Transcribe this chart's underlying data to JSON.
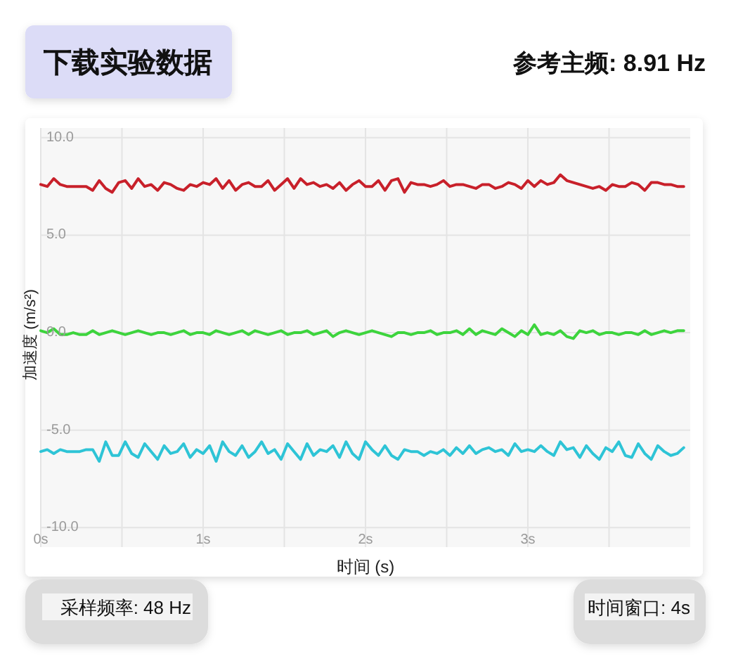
{
  "chart_data": {
    "type": "line",
    "xlabel": "时间 (s)",
    "ylabel": "加速度 (m/s²)",
    "annotations": [
      "下载实验数据",
      "参考主频: 8.91 Hz",
      "采样频率: 48 Hz",
      "时间窗口: 4s"
    ],
    "xlim": [
      0,
      4
    ],
    "ylim": [
      -11,
      10.5
    ],
    "xticks": [
      {
        "value": 0,
        "label": "0s"
      },
      {
        "value": 0.5,
        "label": null
      },
      {
        "value": 1,
        "label": "1s"
      },
      {
        "value": 1.5,
        "label": null
      },
      {
        "value": 2,
        "label": "2s"
      },
      {
        "value": 2.5,
        "label": null
      },
      {
        "value": 3,
        "label": "3s"
      },
      {
        "value": 3.5,
        "label": null
      }
    ],
    "yticks": [
      {
        "value": -10,
        "label": "-10.0"
      },
      {
        "value": -5,
        "label": "-5.0"
      },
      {
        "value": 0,
        "label": "0.0"
      },
      {
        "value": 5,
        "label": "5.0"
      },
      {
        "value": 10,
        "label": "10.0"
      }
    ],
    "grid": true,
    "x": [
      0,
      0.04,
      0.08,
      0.12,
      0.16,
      0.2,
      0.24,
      0.28,
      0.32,
      0.36,
      0.4,
      0.44,
      0.48,
      0.52,
      0.56,
      0.6,
      0.64,
      0.68,
      0.72,
      0.76,
      0.8,
      0.84,
      0.88,
      0.92,
      0.96,
      1,
      1.04,
      1.08,
      1.12,
      1.16,
      1.2,
      1.24,
      1.28,
      1.32,
      1.36,
      1.4,
      1.44,
      1.48,
      1.52,
      1.56,
      1.6,
      1.64,
      1.68,
      1.72,
      1.76,
      1.8,
      1.84,
      1.88,
      1.92,
      1.96,
      2,
      2.04,
      2.08,
      2.12,
      2.16,
      2.2,
      2.24,
      2.28,
      2.32,
      2.36,
      2.4,
      2.44,
      2.48,
      2.52,
      2.56,
      2.6,
      2.64,
      2.68,
      2.72,
      2.76,
      2.8,
      2.84,
      2.88,
      2.92,
      2.96,
      3,
      3.04,
      3.08,
      3.12,
      3.16,
      3.2,
      3.24,
      3.28,
      3.32,
      3.36,
      3.4,
      3.44,
      3.48,
      3.52,
      3.56,
      3.6,
      3.64,
      3.68,
      3.72,
      3.76,
      3.8,
      3.84,
      3.88,
      3.92,
      3.96
    ],
    "series": [
      {
        "color": "#c8202a",
        "values": [
          7.6,
          7.5,
          7.9,
          7.6,
          7.5,
          7.5,
          7.5,
          7.5,
          7.3,
          7.8,
          7.4,
          7.2,
          7.7,
          7.8,
          7.4,
          7.9,
          7.5,
          7.6,
          7.3,
          7.7,
          7.6,
          7.4,
          7.3,
          7.6,
          7.5,
          7.7,
          7.6,
          7.9,
          7.4,
          7.8,
          7.3,
          7.6,
          7.7,
          7.5,
          7.5,
          7.8,
          7.3,
          7.6,
          7.9,
          7.4,
          7.9,
          7.6,
          7.7,
          7.5,
          7.6,
          7.4,
          7.7,
          7.3,
          7.6,
          7.8,
          7.5,
          7.5,
          7.8,
          7.3,
          7.8,
          7.9,
          7.2,
          7.7,
          7.6,
          7.6,
          7.5,
          7.6,
          7.8,
          7.5,
          7.6,
          7.6,
          7.5,
          7.4,
          7.6,
          7.6,
          7.4,
          7.5,
          7.7,
          7.6,
          7.4,
          7.8,
          7.5,
          7.8,
          7.6,
          7.7,
          8.1,
          7.8,
          7.7,
          7.6,
          7.5,
          7.4,
          7.5,
          7.3,
          7.6,
          7.5,
          7.5,
          7.7,
          7.6,
          7.3,
          7.7,
          7.7,
          7.6,
          7.6,
          7.5,
          7.5
        ]
      },
      {
        "color": "#3dd43d",
        "values": [
          0.1,
          0.0,
          0.2,
          -0.1,
          -0.1,
          0.0,
          -0.1,
          -0.1,
          0.1,
          -0.1,
          0.0,
          0.1,
          0.0,
          -0.1,
          0.0,
          0.1,
          0.0,
          -0.1,
          0.0,
          0.0,
          -0.1,
          0.0,
          0.1,
          -0.1,
          0.0,
          0.0,
          -0.1,
          0.1,
          0.0,
          -0.1,
          0.0,
          0.1,
          -0.1,
          0.1,
          0.0,
          -0.1,
          0.0,
          0.1,
          -0.1,
          0.0,
          0.0,
          0.1,
          -0.1,
          0.0,
          0.1,
          -0.2,
          0.0,
          0.1,
          0.0,
          -0.1,
          0.0,
          0.1,
          0.0,
          -0.1,
          -0.2,
          0.0,
          0.0,
          -0.1,
          0.0,
          0.0,
          0.1,
          -0.1,
          0.0,
          0.0,
          0.1,
          -0.1,
          0.2,
          -0.1,
          0.1,
          0.0,
          -0.1,
          0.2,
          0.0,
          -0.2,
          0.1,
          -0.1,
          0.4,
          -0.1,
          0.0,
          -0.1,
          0.1,
          -0.2,
          -0.3,
          0.1,
          0.0,
          0.1,
          -0.1,
          0.0,
          0.0,
          -0.1,
          0.0,
          0.0,
          -0.1,
          0.1,
          -0.1,
          0.0,
          0.1,
          0.0,
          0.1,
          0.1
        ]
      },
      {
        "color": "#2ec4d6",
        "values": [
          -6.1,
          -6.0,
          -6.2,
          -6.0,
          -6.1,
          -6.1,
          -6.1,
          -6.0,
          -6.0,
          -6.6,
          -5.6,
          -6.3,
          -6.3,
          -5.6,
          -6.2,
          -6.4,
          -5.7,
          -6.1,
          -6.5,
          -5.8,
          -6.2,
          -6.1,
          -5.7,
          -6.4,
          -6.0,
          -6.2,
          -5.8,
          -6.6,
          -5.6,
          -6.1,
          -6.3,
          -5.8,
          -6.4,
          -6.1,
          -5.6,
          -6.2,
          -6.0,
          -6.5,
          -5.7,
          -6.1,
          -6.5,
          -5.7,
          -6.3,
          -6.0,
          -6.1,
          -5.8,
          -6.4,
          -5.6,
          -6.2,
          -6.5,
          -5.6,
          -6.0,
          -6.3,
          -5.8,
          -6.3,
          -6.5,
          -6.0,
          -6.1,
          -6.1,
          -6.3,
          -6.1,
          -6.2,
          -6.0,
          -6.3,
          -5.9,
          -6.2,
          -5.8,
          -6.2,
          -6.0,
          -5.9,
          -6.1,
          -6.0,
          -6.3,
          -5.7,
          -6.1,
          -6.0,
          -6.1,
          -5.8,
          -6.1,
          -6.3,
          -5.6,
          -6.0,
          -5.9,
          -6.4,
          -5.8,
          -6.2,
          -6.5,
          -5.9,
          -6.1,
          -5.6,
          -6.3,
          -6.4,
          -5.7,
          -6.2,
          -6.5,
          -5.8,
          -6.1,
          -6.3,
          -6.2,
          -5.9
        ]
      }
    ]
  }
}
